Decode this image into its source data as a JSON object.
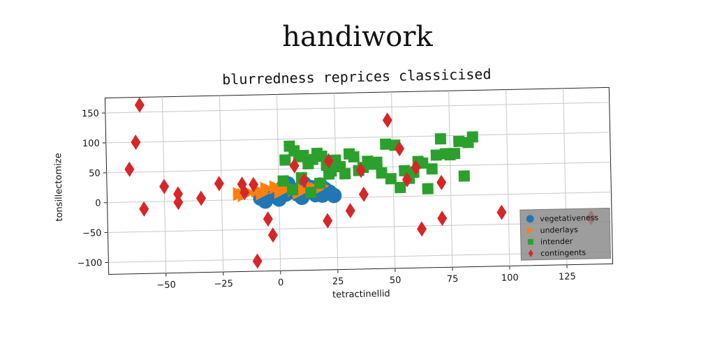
{
  "figure": {
    "suptitle": "handiwork"
  },
  "chart_data": {
    "type": "scatter",
    "title": "blurredness reprices classicised",
    "xlabel": "tetractinellid",
    "ylabel": "tonsillectomize",
    "xlim": [
      -75,
      145
    ],
    "ylim": [
      -120,
      175
    ],
    "xticks": [
      -50,
      -25,
      0,
      25,
      50,
      75,
      100,
      125
    ],
    "yticks": [
      -100,
      -50,
      0,
      50,
      100,
      150
    ],
    "grid": true,
    "legend_position": "lower-right",
    "series": [
      {
        "name": "vegetativeness",
        "color": "#1f77b4",
        "marker": "circle",
        "points": [
          [
            -8,
            2
          ],
          [
            -4,
            5
          ],
          [
            -1,
            10
          ],
          [
            2,
            20
          ],
          [
            4,
            25
          ],
          [
            6,
            15
          ],
          [
            8,
            8
          ],
          [
            10,
            2
          ],
          [
            12,
            12
          ],
          [
            14,
            18
          ],
          [
            16,
            6
          ],
          [
            18,
            22
          ],
          [
            20,
            15
          ],
          [
            22,
            10
          ],
          [
            24,
            4
          ],
          [
            -6,
            -3
          ],
          [
            0,
            0
          ],
          [
            3,
            8
          ],
          [
            11,
            25
          ],
          [
            19,
            5
          ]
        ]
      },
      {
        "name": "underlays",
        "color": "#ff7f0e",
        "marker": "triangle-right",
        "points": [
          [
            -17,
            10
          ],
          [
            -13,
            12
          ],
          [
            -9,
            15
          ],
          [
            -5,
            18
          ],
          [
            -1,
            20
          ],
          [
            3,
            18
          ],
          [
            7,
            15
          ],
          [
            11,
            14
          ],
          [
            15,
            18
          ],
          [
            19,
            20
          ],
          [
            -15,
            8
          ],
          [
            -7,
            10
          ],
          [
            1,
            12
          ],
          [
            9,
            10
          ],
          [
            17,
            15
          ]
        ]
      },
      {
        "name": "intender",
        "color": "#2ca02c",
        "marker": "square",
        "points": [
          [
            3,
            65
          ],
          [
            5,
            88
          ],
          [
            7,
            80
          ],
          [
            9,
            70
          ],
          [
            11,
            72
          ],
          [
            13,
            58
          ],
          [
            15,
            65
          ],
          [
            17,
            75
          ],
          [
            19,
            70
          ],
          [
            21,
            55
          ],
          [
            23,
            45
          ],
          [
            25,
            63
          ],
          [
            27,
            52
          ],
          [
            29,
            40
          ],
          [
            31,
            73
          ],
          [
            33,
            68
          ],
          [
            35,
            45
          ],
          [
            37,
            50
          ],
          [
            39,
            60
          ],
          [
            41,
            55
          ],
          [
            43,
            58
          ],
          [
            45,
            40
          ],
          [
            47,
            88
          ],
          [
            49,
            30
          ],
          [
            51,
            86
          ],
          [
            53,
            15
          ],
          [
            55,
            43
          ],
          [
            57,
            30
          ],
          [
            59,
            40
          ],
          [
            61,
            58
          ],
          [
            63,
            55
          ],
          [
            65,
            12
          ],
          [
            67,
            45
          ],
          [
            69,
            68
          ],
          [
            71,
            95
          ],
          [
            73,
            70
          ],
          [
            75,
            68
          ],
          [
            77,
            70
          ],
          [
            79,
            90
          ],
          [
            81,
            32
          ],
          [
            83,
            88
          ],
          [
            85,
            97
          ],
          [
            10,
            35
          ],
          [
            14,
            10
          ],
          [
            18,
            25
          ],
          [
            22,
            40
          ],
          [
            6,
            15
          ],
          [
            2,
            30
          ]
        ]
      },
      {
        "name": "contingents",
        "color": "#d62728",
        "marker": "diamond",
        "points": [
          [
            -60,
            162
          ],
          [
            -62,
            100
          ],
          [
            -65,
            55
          ],
          [
            -59,
            -12
          ],
          [
            -50,
            25
          ],
          [
            -44,
            12
          ],
          [
            -44,
            -2
          ],
          [
            -34,
            4
          ],
          [
            -26,
            28
          ],
          [
            -16,
            26
          ],
          [
            -15,
            12
          ],
          [
            -11,
            25
          ],
          [
            -5,
            -33
          ],
          [
            -3,
            -60
          ],
          [
            -10,
            -103
          ],
          [
            7,
            55
          ],
          [
            11,
            30
          ],
          [
            21,
            -38
          ],
          [
            22,
            62
          ],
          [
            31,
            -22
          ],
          [
            36,
            45
          ],
          [
            37,
            5
          ],
          [
            48,
            128
          ],
          [
            53,
            80
          ],
          [
            56,
            28
          ],
          [
            60,
            48
          ],
          [
            62,
            -55
          ],
          [
            71,
            -38
          ],
          [
            71,
            22
          ],
          [
            97,
            -30
          ],
          [
            136,
            -42
          ]
        ]
      }
    ]
  }
}
